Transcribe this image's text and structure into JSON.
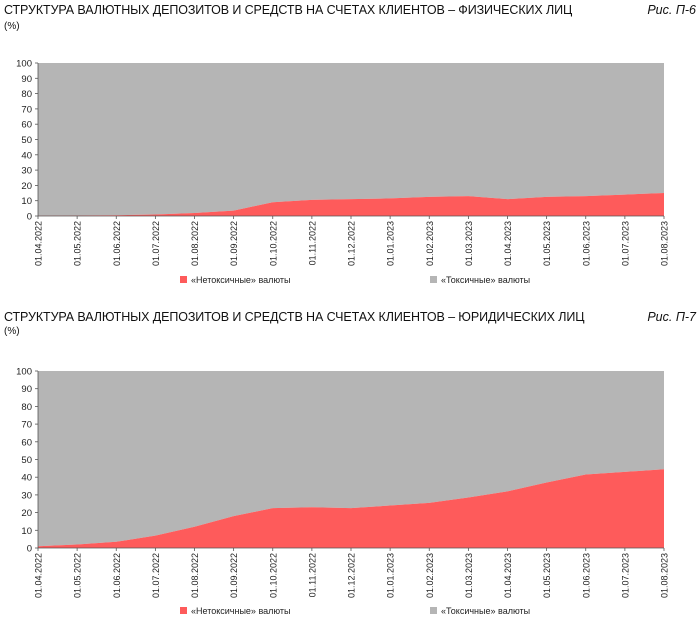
{
  "colors": {
    "non_toxic": "#fe5b5b",
    "toxic": "#b5b5b5"
  },
  "chart_data": [
    {
      "type": "area",
      "title": "СТРУКТУРА ВАЛЮТНЫХ ДЕПОЗИТОВ И СРЕДСТВ НА СЧЕТАХ КЛИЕНТОВ – ФИЗИЧЕСКИХ ЛИЦ",
      "fig": "Рис. П-6",
      "unit": "(%)",
      "stacked": true,
      "ylim": [
        0,
        100
      ],
      "yticks": [
        0,
        10,
        20,
        30,
        40,
        50,
        60,
        70,
        80,
        90,
        100
      ],
      "x": [
        "01.04.2022",
        "01.05.2022",
        "01.06.2022",
        "01.07.2022",
        "01.08.2022",
        "01.09.2022",
        "01.10.2022",
        "01.11.2022",
        "01.12.2022",
        "01.01.2023",
        "01.02.2023",
        "01.03.2023",
        "01.04.2023",
        "01.05.2023",
        "01.06.2023",
        "01.07.2023",
        "01.08.2023"
      ],
      "series": [
        {
          "name": "«Нетоксичные» валюты",
          "values": [
            0.2,
            0.3,
            0.5,
            1.0,
            2.0,
            3.5,
            9.0,
            10.5,
            11.0,
            11.5,
            12.5,
            13.0,
            11.0,
            12.5,
            13.0,
            14.0,
            15.0
          ]
        },
        {
          "name": "«Токсичные» валюты",
          "values": [
            99.8,
            99.7,
            99.5,
            99.0,
            98.0,
            96.5,
            91.0,
            89.5,
            89.0,
            88.5,
            87.5,
            87.0,
            89.0,
            87.5,
            87.0,
            86.0,
            85.0
          ]
        }
      ],
      "legend": "bottom"
    },
    {
      "type": "area",
      "title": "СТРУКТУРА ВАЛЮТНЫХ ДЕПОЗИТОВ И СРЕДСТВ НА СЧЕТАХ КЛИЕНТОВ – ЮРИДИЧЕСКИХ ЛИЦ",
      "fig": "Рис. П-7",
      "unit": "(%)",
      "stacked": true,
      "ylim": [
        0,
        100
      ],
      "yticks": [
        0,
        10,
        20,
        30,
        40,
        50,
        60,
        70,
        80,
        90,
        100
      ],
      "x": [
        "01.04.2022",
        "01.05.2022",
        "01.06.2022",
        "01.07.2022",
        "01.08.2022",
        "01.09.2022",
        "01.10.2022",
        "01.11.2022",
        "01.12.2022",
        "01.01.2023",
        "01.02.2023",
        "01.03.2023",
        "01.04.2023",
        "01.05.2023",
        "01.06.2023",
        "01.07.2023",
        "01.08.2023"
      ],
      "series": [
        {
          "name": "«Нетоксичные» валюты",
          "values": [
            1.0,
            2.0,
            3.5,
            7.0,
            12.0,
            18.0,
            22.5,
            23.0,
            22.5,
            24.0,
            25.5,
            28.5,
            32.0,
            37.0,
            41.5,
            43.0,
            44.5
          ]
        },
        {
          "name": "«Токсичные» валюты",
          "values": [
            99.0,
            98.0,
            96.5,
            93.0,
            88.0,
            82.0,
            77.5,
            77.0,
            77.5,
            76.0,
            74.5,
            71.5,
            68.0,
            63.0,
            58.5,
            57.0,
            55.5
          ]
        }
      ],
      "legend": "bottom"
    }
  ]
}
